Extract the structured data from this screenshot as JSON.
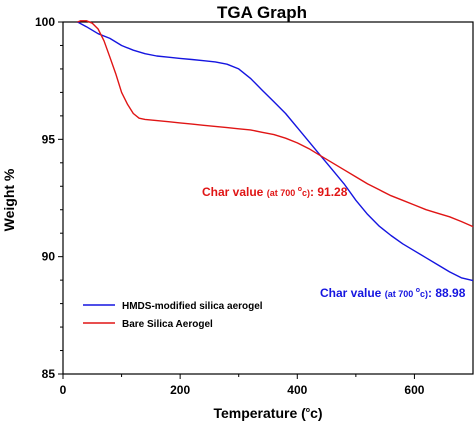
{
  "chart_data": {
    "type": "line",
    "title": "TGA Graph",
    "xlabel_main": "Temperature (",
    "xlabel_unit": "o",
    "xlabel_tail": "c)",
    "ylabel": "Weight %",
    "xlim": [
      0,
      700
    ],
    "ylim": [
      85,
      100
    ],
    "xticks": [
      0,
      200,
      400,
      600
    ],
    "yticks": [
      85,
      90,
      95,
      100
    ],
    "xtick_labels": [
      "0",
      "200",
      "400",
      "600"
    ],
    "ytick_labels": [
      "85",
      "90",
      "95",
      "100"
    ],
    "grid": false,
    "legend_position": "bottom-left",
    "series": [
      {
        "name": "HMDS-modified silica aerogel",
        "color": "#1515e0",
        "x": [
          25,
          40,
          60,
          80,
          100,
          120,
          140,
          160,
          180,
          200,
          220,
          240,
          260,
          280,
          300,
          320,
          340,
          360,
          380,
          400,
          420,
          440,
          460,
          480,
          500,
          520,
          540,
          560,
          580,
          600,
          620,
          640,
          660,
          680,
          700
        ],
        "y": [
          100.0,
          99.8,
          99.5,
          99.3,
          99.0,
          98.8,
          98.65,
          98.55,
          98.5,
          98.45,
          98.4,
          98.35,
          98.3,
          98.2,
          98.0,
          97.6,
          97.1,
          96.6,
          96.1,
          95.5,
          94.9,
          94.3,
          93.7,
          93.1,
          92.4,
          91.8,
          91.3,
          90.9,
          90.55,
          90.25,
          89.95,
          89.65,
          89.35,
          89.1,
          88.98
        ]
      },
      {
        "name": "Bare Silica Aerogel",
        "color": "#e01515",
        "x": [
          25,
          30,
          40,
          50,
          60,
          70,
          80,
          90,
          100,
          110,
          120,
          130,
          140,
          160,
          180,
          200,
          220,
          240,
          260,
          280,
          300,
          320,
          340,
          360,
          380,
          400,
          420,
          440,
          460,
          480,
          500,
          520,
          540,
          560,
          580,
          600,
          620,
          640,
          660,
          680,
          700
        ],
        "y": [
          100.0,
          100.05,
          100.05,
          99.95,
          99.7,
          99.2,
          98.5,
          97.8,
          97.0,
          96.5,
          96.1,
          95.9,
          95.85,
          95.8,
          95.75,
          95.7,
          95.65,
          95.6,
          95.55,
          95.5,
          95.45,
          95.4,
          95.3,
          95.2,
          95.05,
          94.85,
          94.6,
          94.3,
          94.0,
          93.7,
          93.4,
          93.1,
          92.85,
          92.6,
          92.4,
          92.2,
          92.0,
          91.85,
          91.7,
          91.5,
          91.28
        ]
      }
    ],
    "annotations": [
      {
        "series": 1,
        "prefix": "Char value ",
        "detail_a": "(at 700 ",
        "detail_sup": "o",
        "detail_b": "c)",
        "suffix": ": 91.28",
        "color": "#e01515"
      },
      {
        "series": 0,
        "prefix": "Char value ",
        "detail_a": "(at 700 ",
        "detail_sup": "o",
        "detail_b": "c)",
        "suffix": ": 88.98",
        "color": "#1515e0"
      }
    ]
  }
}
